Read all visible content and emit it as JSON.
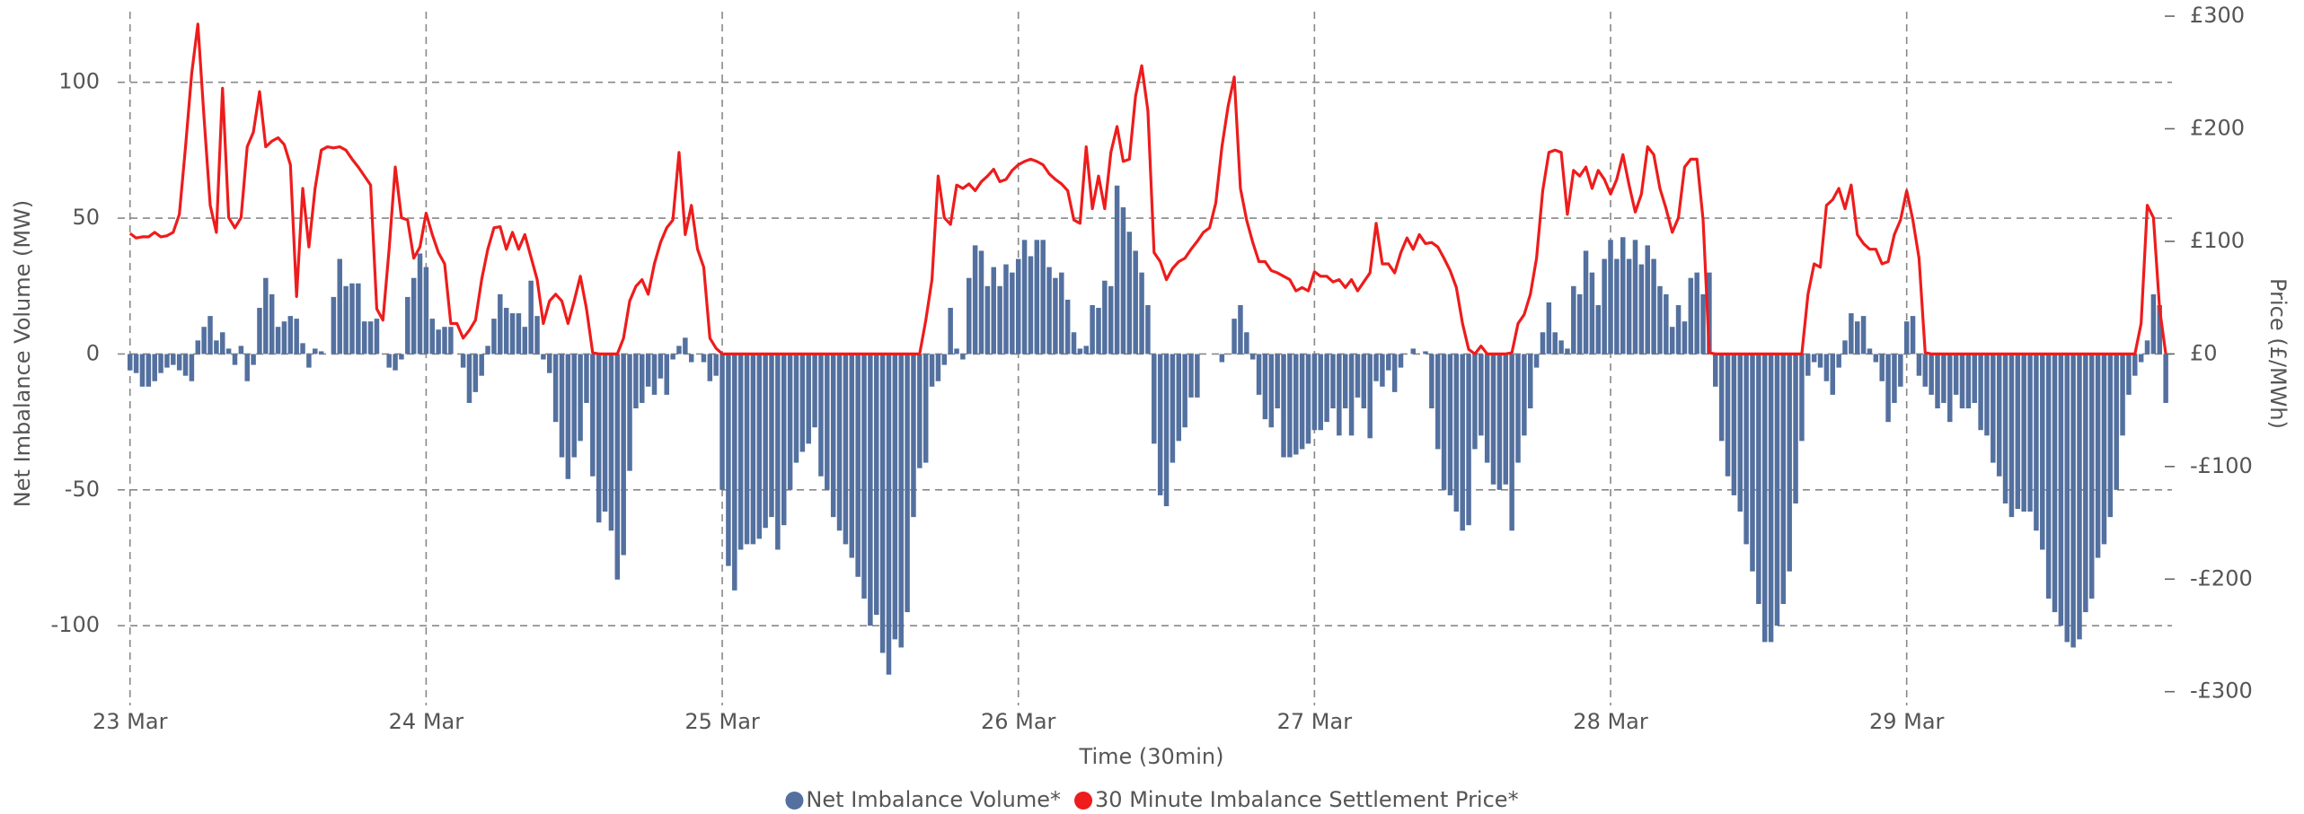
{
  "chart_data": {
    "type": "bar",
    "xlabel": "Time (30min)",
    "ylabel": "Net Imbalance Volume (MW)",
    "y2label": "Price (£/MWh)",
    "x": [
      0,
      1,
      2,
      3,
      4,
      5,
      6,
      7,
      8,
      9,
      10,
      11,
      12,
      13,
      14,
      15,
      16,
      17,
      18,
      19,
      20,
      21,
      22,
      23,
      24,
      25,
      26,
      27,
      28,
      29,
      30,
      31,
      32,
      33,
      34,
      35,
      36,
      37,
      38,
      39,
      40,
      41,
      42,
      43,
      44,
      45,
      46,
      47,
      48,
      49,
      50,
      51,
      52,
      53,
      54,
      55,
      56,
      57,
      58,
      59,
      60,
      61,
      62,
      63,
      64,
      65,
      66,
      67,
      68,
      69,
      70,
      71,
      72,
      73,
      74,
      75,
      76,
      77,
      78,
      79,
      80,
      81,
      82,
      83,
      84,
      85,
      86,
      87,
      88,
      89,
      90,
      91,
      92,
      93,
      94,
      95,
      96,
      97,
      98,
      99,
      100,
      101,
      102,
      103,
      104,
      105,
      106,
      107,
      108,
      109,
      110,
      111,
      112,
      113,
      114,
      115,
      116,
      117,
      118,
      119,
      120,
      121,
      122,
      123,
      124,
      125,
      126,
      127,
      128,
      129,
      130,
      131,
      132,
      133,
      134,
      135,
      136,
      137,
      138,
      139,
      140,
      141,
      142,
      143,
      144,
      145,
      146,
      147,
      148,
      149,
      150,
      151,
      152,
      153,
      154,
      155,
      156,
      157,
      158,
      159,
      160,
      161,
      162,
      163,
      164,
      165,
      166,
      167,
      168,
      169,
      170,
      171,
      172,
      173,
      174,
      175,
      176,
      177,
      178,
      179,
      180,
      181,
      182,
      183,
      184,
      185,
      186,
      187,
      188,
      189,
      190,
      191,
      192,
      193,
      194,
      195,
      196,
      197,
      198,
      199,
      200,
      201,
      202,
      203,
      204,
      205,
      206,
      207,
      208,
      209,
      210,
      211,
      212,
      213,
      214,
      215,
      216,
      217,
      218,
      219,
      220,
      221,
      222,
      223,
      224,
      225,
      226,
      227,
      228,
      229,
      230,
      231,
      232,
      233,
      234,
      235,
      236,
      237,
      238,
      239,
      240,
      241,
      242,
      243,
      244,
      245,
      246,
      247,
      248,
      249,
      250,
      251,
      252,
      253,
      254,
      255,
      256,
      257,
      258,
      259,
      260,
      261,
      262,
      263,
      264,
      265,
      266,
      267,
      268,
      269,
      270,
      271,
      272,
      273,
      274,
      275,
      276,
      277,
      278,
      279,
      280,
      281,
      282,
      283,
      284,
      285,
      286,
      287,
      288,
      289,
      290,
      291,
      292,
      293,
      294,
      295,
      296,
      297,
      298,
      299,
      300,
      301,
      302,
      303,
      304,
      305,
      306,
      307,
      308,
      309,
      310,
      311,
      312,
      313,
      314,
      315,
      316,
      317,
      318,
      319,
      320,
      321,
      322,
      323,
      324,
      325,
      326,
      327,
      328,
      329,
      330
    ],
    "series": [
      {
        "name": "Net Imbalance Volume*",
        "type": "bar",
        "color": "#53709f",
        "values": [
          -6,
          -7,
          -12,
          -12,
          -10,
          -7,
          -5,
          -4,
          -6,
          -8,
          -10,
          5,
          10,
          14,
          5,
          8,
          2,
          -4,
          3,
          -10,
          -4,
          17,
          28,
          22,
          10,
          12,
          14,
          13,
          4,
          -5,
          2,
          1,
          0,
          21,
          35,
          25,
          26,
          26,
          12,
          12,
          13,
          0,
          -5,
          -6,
          -2,
          21,
          28,
          37,
          32,
          13,
          9,
          10,
          10,
          0,
          -5,
          -18,
          -14,
          -8,
          3,
          13,
          22,
          17,
          15,
          15,
          10,
          27,
          14,
          -2,
          -7,
          -25,
          -38,
          -46,
          -38,
          -32,
          -18,
          -45,
          -62,
          -58,
          -65,
          -83,
          -74,
          -43,
          -20,
          -18,
          -12,
          -15,
          -9,
          -15,
          -2,
          3,
          6,
          -3,
          0,
          -3,
          -10,
          -8,
          -50,
          -78,
          -87,
          -72,
          -70,
          -70,
          -68,
          -64,
          -60,
          -72,
          -63,
          -50,
          -40,
          -36,
          -33,
          -27,
          -45,
          -50,
          -60,
          -65,
          -70,
          -75,
          -82,
          -90,
          -100,
          -96,
          -110,
          -118,
          -105,
          -108,
          -95,
          -60,
          -42,
          -40,
          -12,
          -10,
          -4,
          17,
          2,
          -2,
          28,
          40,
          38,
          25,
          32,
          25,
          33,
          30,
          35,
          42,
          36,
          42,
          42,
          32,
          28,
          30,
          20,
          8,
          2,
          3,
          18,
          17,
          27,
          25,
          62,
          54,
          45,
          38,
          30,
          18,
          -33,
          -52,
          -56,
          -40,
          -32,
          -27,
          -16,
          -16,
          0,
          0,
          0,
          -3,
          0,
          13,
          18,
          8,
          -2,
          -15,
          -24,
          -27,
          -20,
          -38,
          -38,
          -37,
          -35,
          -33,
          -28,
          -28,
          -25,
          -20,
          -30,
          -20,
          -30,
          -16,
          -20,
          -31,
          -10,
          -12,
          -6,
          -14,
          -5,
          0,
          2,
          0,
          1,
          -20,
          -35,
          -50,
          -52,
          -58,
          -65,
          -63,
          -35,
          -30,
          -40,
          -48,
          -50,
          -48,
          -65,
          -40,
          -30,
          -20,
          -5,
          8,
          19,
          8,
          5,
          2,
          25,
          22,
          38,
          30,
          18,
          35,
          42,
          35,
          43,
          35,
          42,
          33,
          40,
          35,
          25,
          22,
          10,
          18,
          12,
          28,
          30,
          22,
          30,
          -12,
          -32,
          -45,
          -52,
          -58,
          -70,
          -80,
          -92,
          -106,
          -106,
          -100,
          -92,
          -80,
          -55,
          -32,
          -8,
          -3,
          -5,
          -10,
          -15,
          -5,
          5,
          15,
          12,
          14,
          2,
          -3,
          -10,
          -25,
          -18,
          -12,
          12,
          14,
          -8,
          -12,
          -15,
          -20,
          -18,
          -25,
          -15,
          -20,
          -20,
          -18,
          -28,
          -30,
          -40,
          -45,
          -55,
          -60,
          -57,
          -58,
          -58,
          -65,
          -72,
          -90,
          -95,
          -100,
          -106,
          -108,
          -105,
          -95,
          -90,
          -75,
          -70,
          -60,
          -50,
          -30,
          -15,
          -8,
          -3,
          5,
          22,
          18,
          -18
        ]
      },
      {
        "name": "30 Minute Imbalance Settlement Price*",
        "type": "line",
        "axis": "y2",
        "color": "#ee1c1c",
        "values": [
          107,
          103,
          104,
          104,
          108,
          104,
          105,
          108,
          124,
          184,
          249,
          293,
          210,
          132,
          108,
          236,
          121,
          112,
          121,
          184,
          197,
          233,
          184,
          189,
          192,
          186,
          168,
          51,
          147,
          95,
          147,
          181,
          184,
          183,
          184,
          181,
          173,
          166,
          158,
          150,
          40,
          30,
          93,
          166,
          121,
          119,
          85,
          95,
          125,
          106,
          90,
          80,
          27,
          27,
          14,
          21,
          30,
          66,
          93,
          112,
          113,
          93,
          108,
          93,
          106,
          86,
          66,
          27,
          47,
          53,
          47,
          27,
          47,
          69,
          40,
          1,
          0,
          0,
          0,
          0,
          14,
          47,
          60,
          66,
          53,
          80,
          99,
          112,
          119,
          179,
          106,
          132,
          93,
          77,
          14,
          5,
          0,
          0,
          0,
          0,
          0,
          0,
          0,
          0,
          0,
          0,
          0,
          0,
          0,
          0,
          0,
          0,
          0,
          0,
          0,
          0,
          0,
          0,
          0,
          0,
          0,
          0,
          0,
          0,
          0,
          0,
          0,
          0,
          0,
          30,
          66,
          158,
          121,
          115,
          150,
          147,
          151,
          145,
          153,
          158,
          164,
          153,
          155,
          163,
          168,
          171,
          173,
          171,
          168,
          160,
          155,
          151,
          145,
          119,
          116,
          184,
          129,
          158,
          129,
          179,
          202,
          171,
          173,
          229,
          256,
          216,
          90,
          82,
          66,
          76,
          82,
          85,
          93,
          100,
          108,
          112,
          134,
          184,
          220,
          246,
          147,
          119,
          99,
          82,
          82,
          74,
          72,
          69,
          66,
          56,
          59,
          56,
          73,
          69,
          69,
          64,
          66,
          59,
          66,
          56,
          64,
          72,
          116,
          80,
          80,
          72,
          90,
          103,
          93,
          106,
          98,
          99,
          95,
          85,
          74,
          59,
          27,
          4,
          0,
          7,
          0,
          0,
          0,
          0,
          1,
          27,
          35,
          53,
          85,
          145,
          179,
          181,
          179,
          124,
          163,
          158,
          166,
          147,
          163,
          155,
          142,
          155,
          177,
          150,
          126,
          142,
          184,
          177,
          147,
          129,
          108,
          121,
          166,
          173,
          173,
          119,
          1,
          0,
          0,
          0,
          0,
          0,
          0,
          0,
          0,
          0,
          0,
          0,
          0,
          0,
          0,
          0,
          53,
          80,
          77,
          132,
          137,
          147,
          129,
          150,
          106,
          98,
          93,
          93,
          80,
          82,
          106,
          119,
          145,
          119,
          85,
          1,
          0,
          0,
          0,
          0,
          0,
          0,
          0,
          0,
          0,
          0,
          0,
          0,
          0,
          0,
          0,
          0,
          0,
          0,
          0,
          0,
          0,
          0,
          0,
          0,
          0,
          0,
          0,
          0,
          0,
          0,
          0,
          0,
          0,
          0,
          27,
          132,
          121,
          40,
          0
        ]
      }
    ],
    "xlim": [
      -2,
      331
    ],
    "xticks": [
      {
        "value": 0,
        "label": "23 Mar"
      },
      {
        "value": 48,
        "label": "24 Mar"
      },
      {
        "value": 96,
        "label": "25 Mar"
      },
      {
        "value": 144,
        "label": "26 Mar"
      },
      {
        "value": 192,
        "label": "27 Mar"
      },
      {
        "value": 240,
        "label": "28 Mar"
      },
      {
        "value": 288,
        "label": "29 Mar"
      }
    ],
    "ylim": [
      -128,
      126
    ],
    "yticks": [
      -100,
      -50,
      0,
      50,
      100
    ],
    "y2lim": [
      -309,
      304
    ],
    "y2ticks": [
      {
        "value": -300,
        "label": "-£300"
      },
      {
        "value": -200,
        "label": "-£200"
      },
      {
        "value": -100,
        "label": "-£100"
      },
      {
        "value": 0,
        "label": "£0"
      },
      {
        "value": 100,
        "label": "£100"
      },
      {
        "value": 200,
        "label": "£200"
      },
      {
        "value": 300,
        "label": "£300"
      }
    ],
    "grid": true,
    "legend": "bottom"
  }
}
